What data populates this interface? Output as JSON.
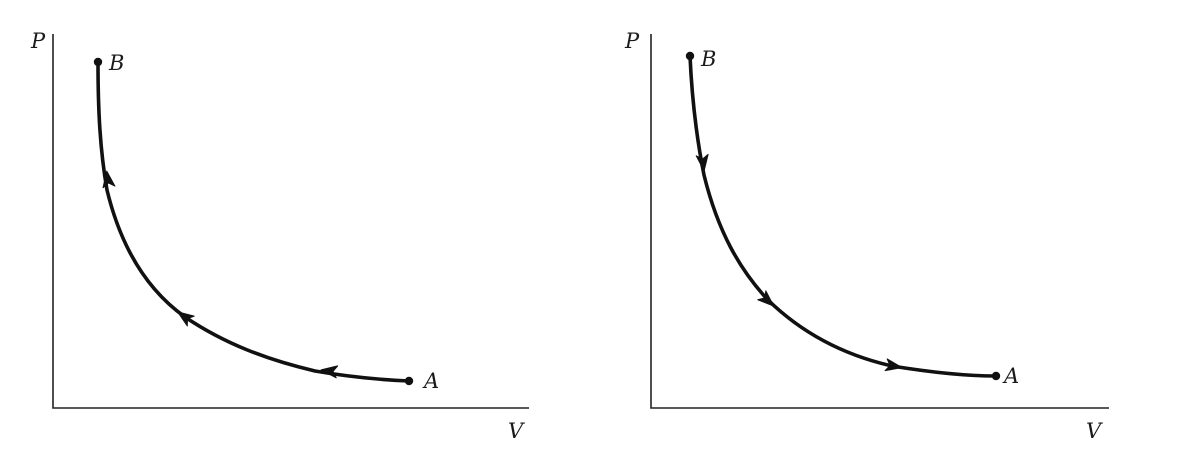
{
  "diagrams": [
    {
      "id": "left",
      "y_axis_label": "P",
      "x_axis_label": "V",
      "start_point_label": "A",
      "end_point_label": "B",
      "path_direction": "A-to-B"
    },
    {
      "id": "right",
      "y_axis_label": "P",
      "x_axis_label": "V",
      "start_point_label": "B",
      "end_point_label": "A",
      "path_direction": "B-to-A"
    }
  ],
  "colors": {
    "ink": "#111111",
    "background": "#ffffff"
  }
}
